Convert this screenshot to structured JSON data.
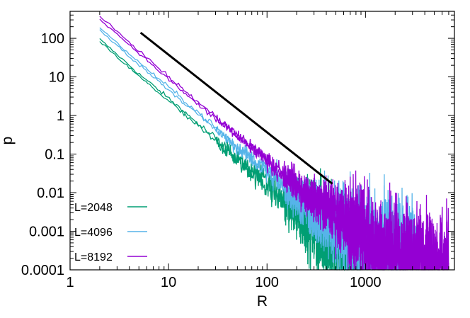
{
  "chart_data": {
    "type": "line",
    "title": "",
    "xlabel": "R",
    "ylabel": "p",
    "x_scale": "log",
    "y_scale": "log",
    "xlim": [
      1,
      8000
    ],
    "ylim": [
      0.0001,
      500
    ],
    "x_ticks": [
      {
        "value": 1,
        "label": "1"
      },
      {
        "value": 10,
        "label": "10"
      },
      {
        "value": 100,
        "label": "100"
      },
      {
        "value": 1000,
        "label": "1000"
      }
    ],
    "y_ticks": [
      {
        "value": 0.0001,
        "label": "0.0001"
      },
      {
        "value": 0.001,
        "label": "0.001"
      },
      {
        "value": 0.01,
        "label": "0.01"
      },
      {
        "value": 0.1,
        "label": "0.1"
      },
      {
        "value": 1,
        "label": "1"
      },
      {
        "value": 10,
        "label": "10"
      },
      {
        "value": 100,
        "label": "100"
      }
    ],
    "grid": false,
    "legend_position": "bottom-left",
    "series": [
      {
        "name": "L=2048",
        "color": "#009e73",
        "points": [
          [
            2,
            95
          ],
          [
            3,
            38
          ],
          [
            5,
            12
          ],
          [
            10,
            2.8
          ],
          [
            20,
            0.6
          ],
          [
            50,
            0.08
          ],
          [
            100,
            0.018
          ],
          [
            200,
            0.004
          ],
          [
            500,
            0.0006
          ],
          [
            900,
            0.00015
          ]
        ]
      },
      {
        "name": "L=4096",
        "color": "#56b4e9",
        "points": [
          [
            2,
            190
          ],
          [
            3,
            75
          ],
          [
            5,
            24
          ],
          [
            10,
            5.5
          ],
          [
            20,
            1.2
          ],
          [
            50,
            0.16
          ],
          [
            100,
            0.04
          ],
          [
            200,
            0.008
          ],
          [
            500,
            0.0015
          ],
          [
            1000,
            0.0005
          ],
          [
            2000,
            0.0004
          ],
          [
            3500,
            0.00035
          ]
        ]
      },
      {
        "name": "L=8192",
        "color": "#9400d3",
        "points": [
          [
            2,
            370
          ],
          [
            3,
            150
          ],
          [
            5,
            48
          ],
          [
            10,
            10
          ],
          [
            20,
            2.2
          ],
          [
            50,
            0.32
          ],
          [
            100,
            0.075
          ],
          [
            200,
            0.016
          ],
          [
            500,
            0.003
          ],
          [
            1000,
            0.0008
          ],
          [
            2000,
            0.0003
          ],
          [
            7000,
            0.0002
          ]
        ]
      }
    ],
    "reference_line": {
      "color": "#000000",
      "points": [
        [
          5.2,
          140
        ],
        [
          460,
          0.017
        ]
      ]
    }
  }
}
